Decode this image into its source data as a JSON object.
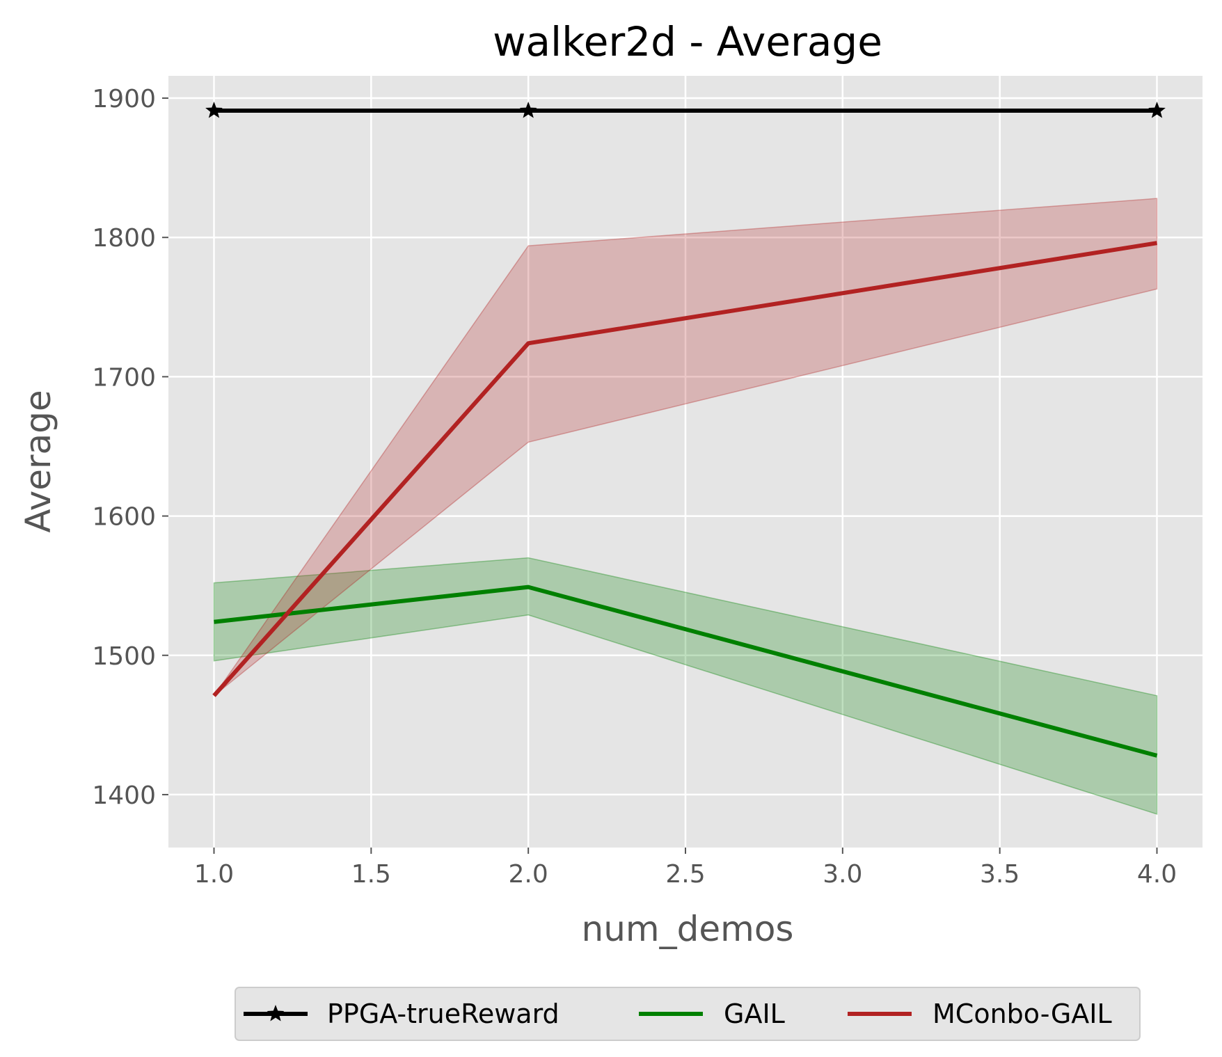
{
  "chart_data": {
    "type": "line",
    "title": "walker2d - Average",
    "xlabel": "num_demos",
    "ylabel": "Average",
    "xlim": [
      0.855,
      4.145
    ],
    "ylim": [
      1362,
      1916
    ],
    "xticks": [
      1.0,
      1.5,
      2.0,
      2.5,
      3.0,
      3.5,
      4.0
    ],
    "xtick_labels": [
      "1.0",
      "1.5",
      "2.0",
      "2.5",
      "3.0",
      "3.5",
      "4.0"
    ],
    "yticks": [
      1400,
      1500,
      1600,
      1700,
      1800,
      1900
    ],
    "ytick_labels": [
      "1400",
      "1500",
      "1600",
      "1700",
      "1800",
      "1900"
    ],
    "grid": true,
    "legend_placement": "bottom-center",
    "x": [
      1,
      2,
      4
    ],
    "series": [
      {
        "name": "PPGA-trueReward",
        "color": "#000000",
        "marker": "star",
        "values": [
          1891,
          1891,
          1891
        ]
      },
      {
        "name": "GAIL",
        "color": "#008000",
        "values": [
          1524,
          1549,
          1428
        ],
        "lower": [
          1496,
          1529,
          1386
        ],
        "upper": [
          1552,
          1570,
          1471
        ]
      },
      {
        "name": "MConbo-GAIL",
        "color": "#b22222",
        "values": [
          1471,
          1724,
          1796
        ],
        "lower": [
          1471,
          1653,
          1763
        ],
        "upper": [
          1471,
          1794,
          1828
        ]
      }
    ]
  }
}
